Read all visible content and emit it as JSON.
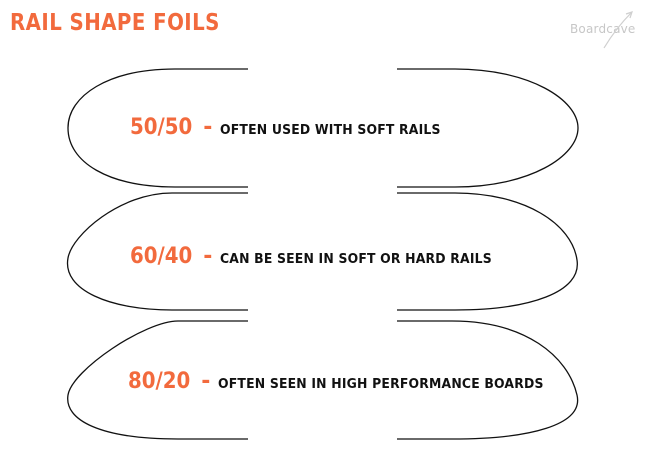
{
  "title": "RAIL SHAPE FOILS",
  "watermark": "Boardcave",
  "accent_color": "#f26a3d",
  "foils": [
    {
      "ratio": "50/50",
      "dash": "-",
      "description": "Often used with soft rails"
    },
    {
      "ratio": "60/40",
      "dash": "-",
      "description": "Can be seen in soft or hard rails"
    },
    {
      "ratio": "80/20",
      "dash": "-",
      "description": "Often seen in high performance boards"
    }
  ]
}
